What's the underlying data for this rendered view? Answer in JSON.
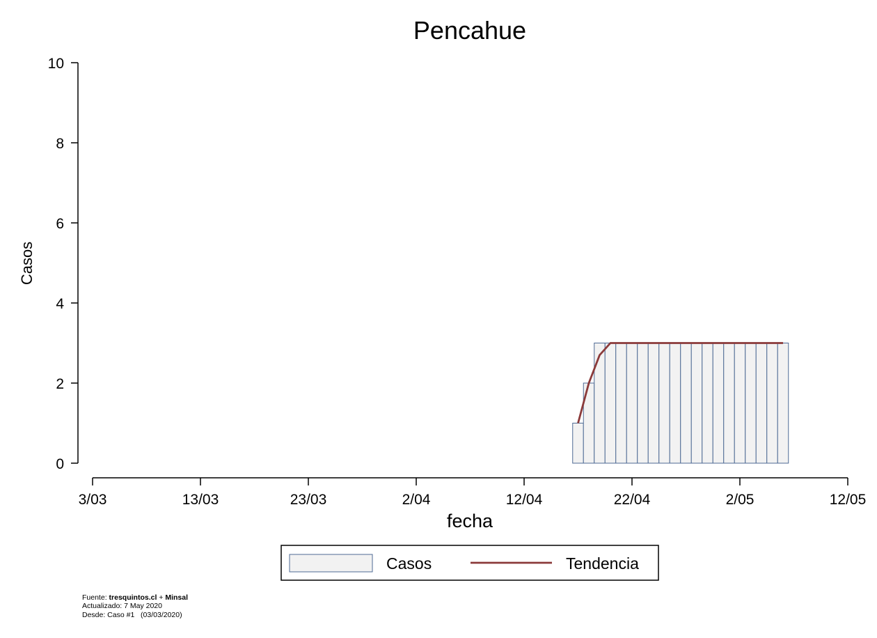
{
  "chart_data": {
    "type": "bar",
    "title": "Pencahue",
    "xlabel": "fecha",
    "ylabel": "Casos",
    "ylim": [
      0,
      10
    ],
    "yticks": [
      0,
      2,
      4,
      6,
      8,
      10
    ],
    "xlim": [
      "2020-03-03",
      "2020-05-12"
    ],
    "xticks": [
      {
        "date": "2020-03-03",
        "label": "3/03"
      },
      {
        "date": "2020-03-13",
        "label": "13/03"
      },
      {
        "date": "2020-03-23",
        "label": "23/03"
      },
      {
        "date": "2020-04-02",
        "label": "2/04"
      },
      {
        "date": "2020-04-12",
        "label": "12/04"
      },
      {
        "date": "2020-04-22",
        "label": "22/04"
      },
      {
        "date": "2020-05-02",
        "label": "2/05"
      },
      {
        "date": "2020-05-12",
        "label": "12/05"
      }
    ],
    "x": [
      "2020-04-17",
      "2020-04-18",
      "2020-04-19",
      "2020-04-20",
      "2020-04-21",
      "2020-04-22",
      "2020-04-23",
      "2020-04-24",
      "2020-04-25",
      "2020-04-26",
      "2020-04-27",
      "2020-04-28",
      "2020-04-29",
      "2020-04-30",
      "2020-05-01",
      "2020-05-02",
      "2020-05-03",
      "2020-05-04",
      "2020-05-05",
      "2020-05-06"
    ],
    "series": [
      {
        "name": "Casos",
        "kind": "bar",
        "color": "#f2f2f2",
        "edge_color": "#4e6a94",
        "values": [
          1,
          2,
          3,
          3,
          3,
          3,
          3,
          3,
          3,
          3,
          3,
          3,
          3,
          3,
          3,
          3,
          3,
          3,
          3,
          3
        ]
      },
      {
        "name": "Tendencia",
        "kind": "line",
        "color": "#8b3a3a",
        "values": [
          1,
          2,
          2.7,
          3,
          3,
          3,
          3,
          3,
          3,
          3,
          3,
          3,
          3,
          3,
          3,
          3,
          3,
          3,
          3,
          3
        ]
      }
    ],
    "grid": false,
    "legend_position": "bottom"
  },
  "source": {
    "line1_prefix": "Fuente: ",
    "line1_site": "tresquintos.cl",
    "line1_plus": " + ",
    "line1_org": "Minsal",
    "line2": "Actualizado: 7 May 2020",
    "line3": "Desde: Caso #1   (03/03/2020)"
  }
}
